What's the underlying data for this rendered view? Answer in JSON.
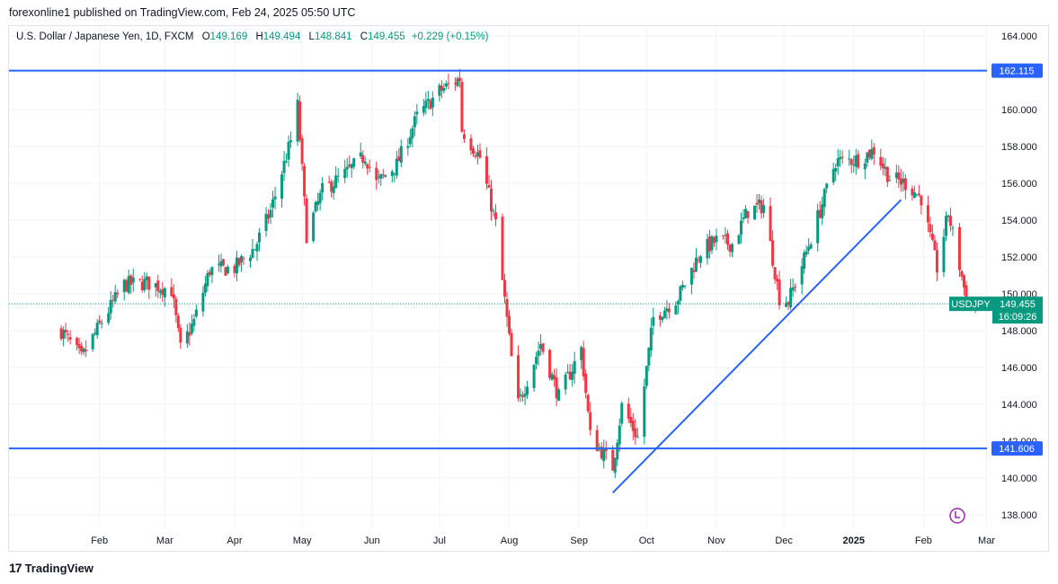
{
  "header": {
    "text": "forexonline1 published on TradingView.com, Feb 24, 2025 05:50 UTC"
  },
  "legend": {
    "symbol": "U.S. Dollar / Japanese Yen, 1D, FXCM",
    "open_label": "O",
    "open": "149.169",
    "high_label": "H",
    "high": "149.494",
    "low_label": "L",
    "low": "148.841",
    "close_label": "C",
    "close": "149.455",
    "change": "+0.229 (+0.15%)"
  },
  "footer": {
    "brand": "TradingView",
    "logo_text": "17"
  },
  "colors": {
    "up": "#089981",
    "down": "#f23645",
    "line": "#2962ff",
    "price_tag": "#089981",
    "grid": "#f0f3fa"
  },
  "chart_data": {
    "type": "candlestick",
    "title": "U.S. Dollar / Japanese Yen, 1D, FXCM",
    "ylim": [
      137,
      165
    ],
    "y_ticks": [
      "164.000",
      "162.000",
      "160.000",
      "158.000",
      "156.000",
      "154.000",
      "152.000",
      "150.000",
      "148.000",
      "146.000",
      "144.000",
      "142.000",
      "140.000",
      "138.000"
    ],
    "y_tick_values": [
      164,
      162,
      160,
      158,
      156,
      154,
      152,
      150,
      148,
      146,
      144,
      142,
      140,
      138
    ],
    "x_ticks": [
      "Feb",
      "Mar",
      "Apr",
      "May",
      "Jun",
      "Jul",
      "Aug",
      "Sep",
      "Oct",
      "Nov",
      "Dec",
      "2025",
      "Feb",
      "Mar"
    ],
    "x_tick_day_index": [
      23,
      103,
      182,
      263,
      349,
      427,
      512,
      595,
      674,
      760,
      839,
      918,
      1002,
      1077
    ],
    "horizontal_lines": [
      {
        "value": 162.115,
        "label": "162.115"
      },
      {
        "value": 141.606,
        "label": "141.606"
      }
    ],
    "trend_line": {
      "start": {
        "date": "2024-09-16",
        "value": 139.2
      },
      "end": {
        "date": "2025-01-22",
        "value": 155.1
      }
    },
    "last_price": {
      "symbol": "USDJPY",
      "value": 149.455,
      "label": "149.455",
      "countdown": "16:09:26"
    },
    "waypoints": [
      [
        "2024-01-15",
        148.0
      ],
      [
        "2024-01-24",
        146.5
      ],
      [
        "2024-02-02",
        148.5
      ],
      [
        "2024-02-12",
        150.5
      ],
      [
        "2024-02-22",
        150.6
      ],
      [
        "2024-03-04",
        150.2
      ],
      [
        "2024-03-08",
        147.0
      ],
      [
        "2024-03-14",
        148.5
      ],
      [
        "2024-03-21",
        151.3
      ],
      [
        "2024-04-01",
        151.4
      ],
      [
        "2024-04-10",
        152.5
      ],
      [
        "2024-04-17",
        154.5
      ],
      [
        "2024-04-26",
        158.3
      ],
      [
        "2024-04-29",
        160.2
      ],
      [
        "2024-05-03",
        153.2
      ],
      [
        "2024-05-10",
        155.6
      ],
      [
        "2024-05-20",
        156.5
      ],
      [
        "2024-05-29",
        157.5
      ],
      [
        "2024-06-03",
        156.0
      ],
      [
        "2024-06-12",
        157.0
      ],
      [
        "2024-06-21",
        159.6
      ],
      [
        "2024-07-01",
        161.0
      ],
      [
        "2024-07-10",
        161.7
      ],
      [
        "2024-07-11",
        158.9
      ],
      [
        "2024-07-19",
        157.4
      ],
      [
        "2024-07-26",
        153.8
      ],
      [
        "2024-08-02",
        146.5
      ],
      [
        "2024-08-05",
        144.0
      ],
      [
        "2024-08-15",
        147.3
      ],
      [
        "2024-08-23",
        144.4
      ],
      [
        "2024-09-02",
        147.0
      ],
      [
        "2024-09-06",
        142.3
      ],
      [
        "2024-09-16",
        140.6
      ],
      [
        "2024-09-20",
        143.9
      ],
      [
        "2024-09-27",
        142.2
      ],
      [
        "2024-10-04",
        148.7
      ],
      [
        "2024-10-15",
        149.8
      ],
      [
        "2024-10-25",
        152.3
      ],
      [
        "2024-11-01",
        152.9
      ],
      [
        "2024-11-08",
        152.7
      ],
      [
        "2024-11-15",
        154.5
      ],
      [
        "2024-11-22",
        154.8
      ],
      [
        "2024-11-29",
        149.8
      ],
      [
        "2024-12-03",
        149.6
      ],
      [
        "2024-12-10",
        151.9
      ],
      [
        "2024-12-18",
        154.9
      ],
      [
        "2024-12-24",
        157.2
      ],
      [
        "2025-01-03",
        157.3
      ],
      [
        "2025-01-10",
        157.8
      ],
      [
        "2025-01-17",
        156.3
      ],
      [
        "2025-01-24",
        156.0
      ],
      [
        "2025-01-31",
        155.2
      ],
      [
        "2025-02-07",
        151.4
      ],
      [
        "2025-02-12",
        154.4
      ],
      [
        "2025-02-17",
        151.5
      ],
      [
        "2025-02-21",
        149.2
      ],
      [
        "2025-02-24",
        149.455
      ]
    ]
  }
}
